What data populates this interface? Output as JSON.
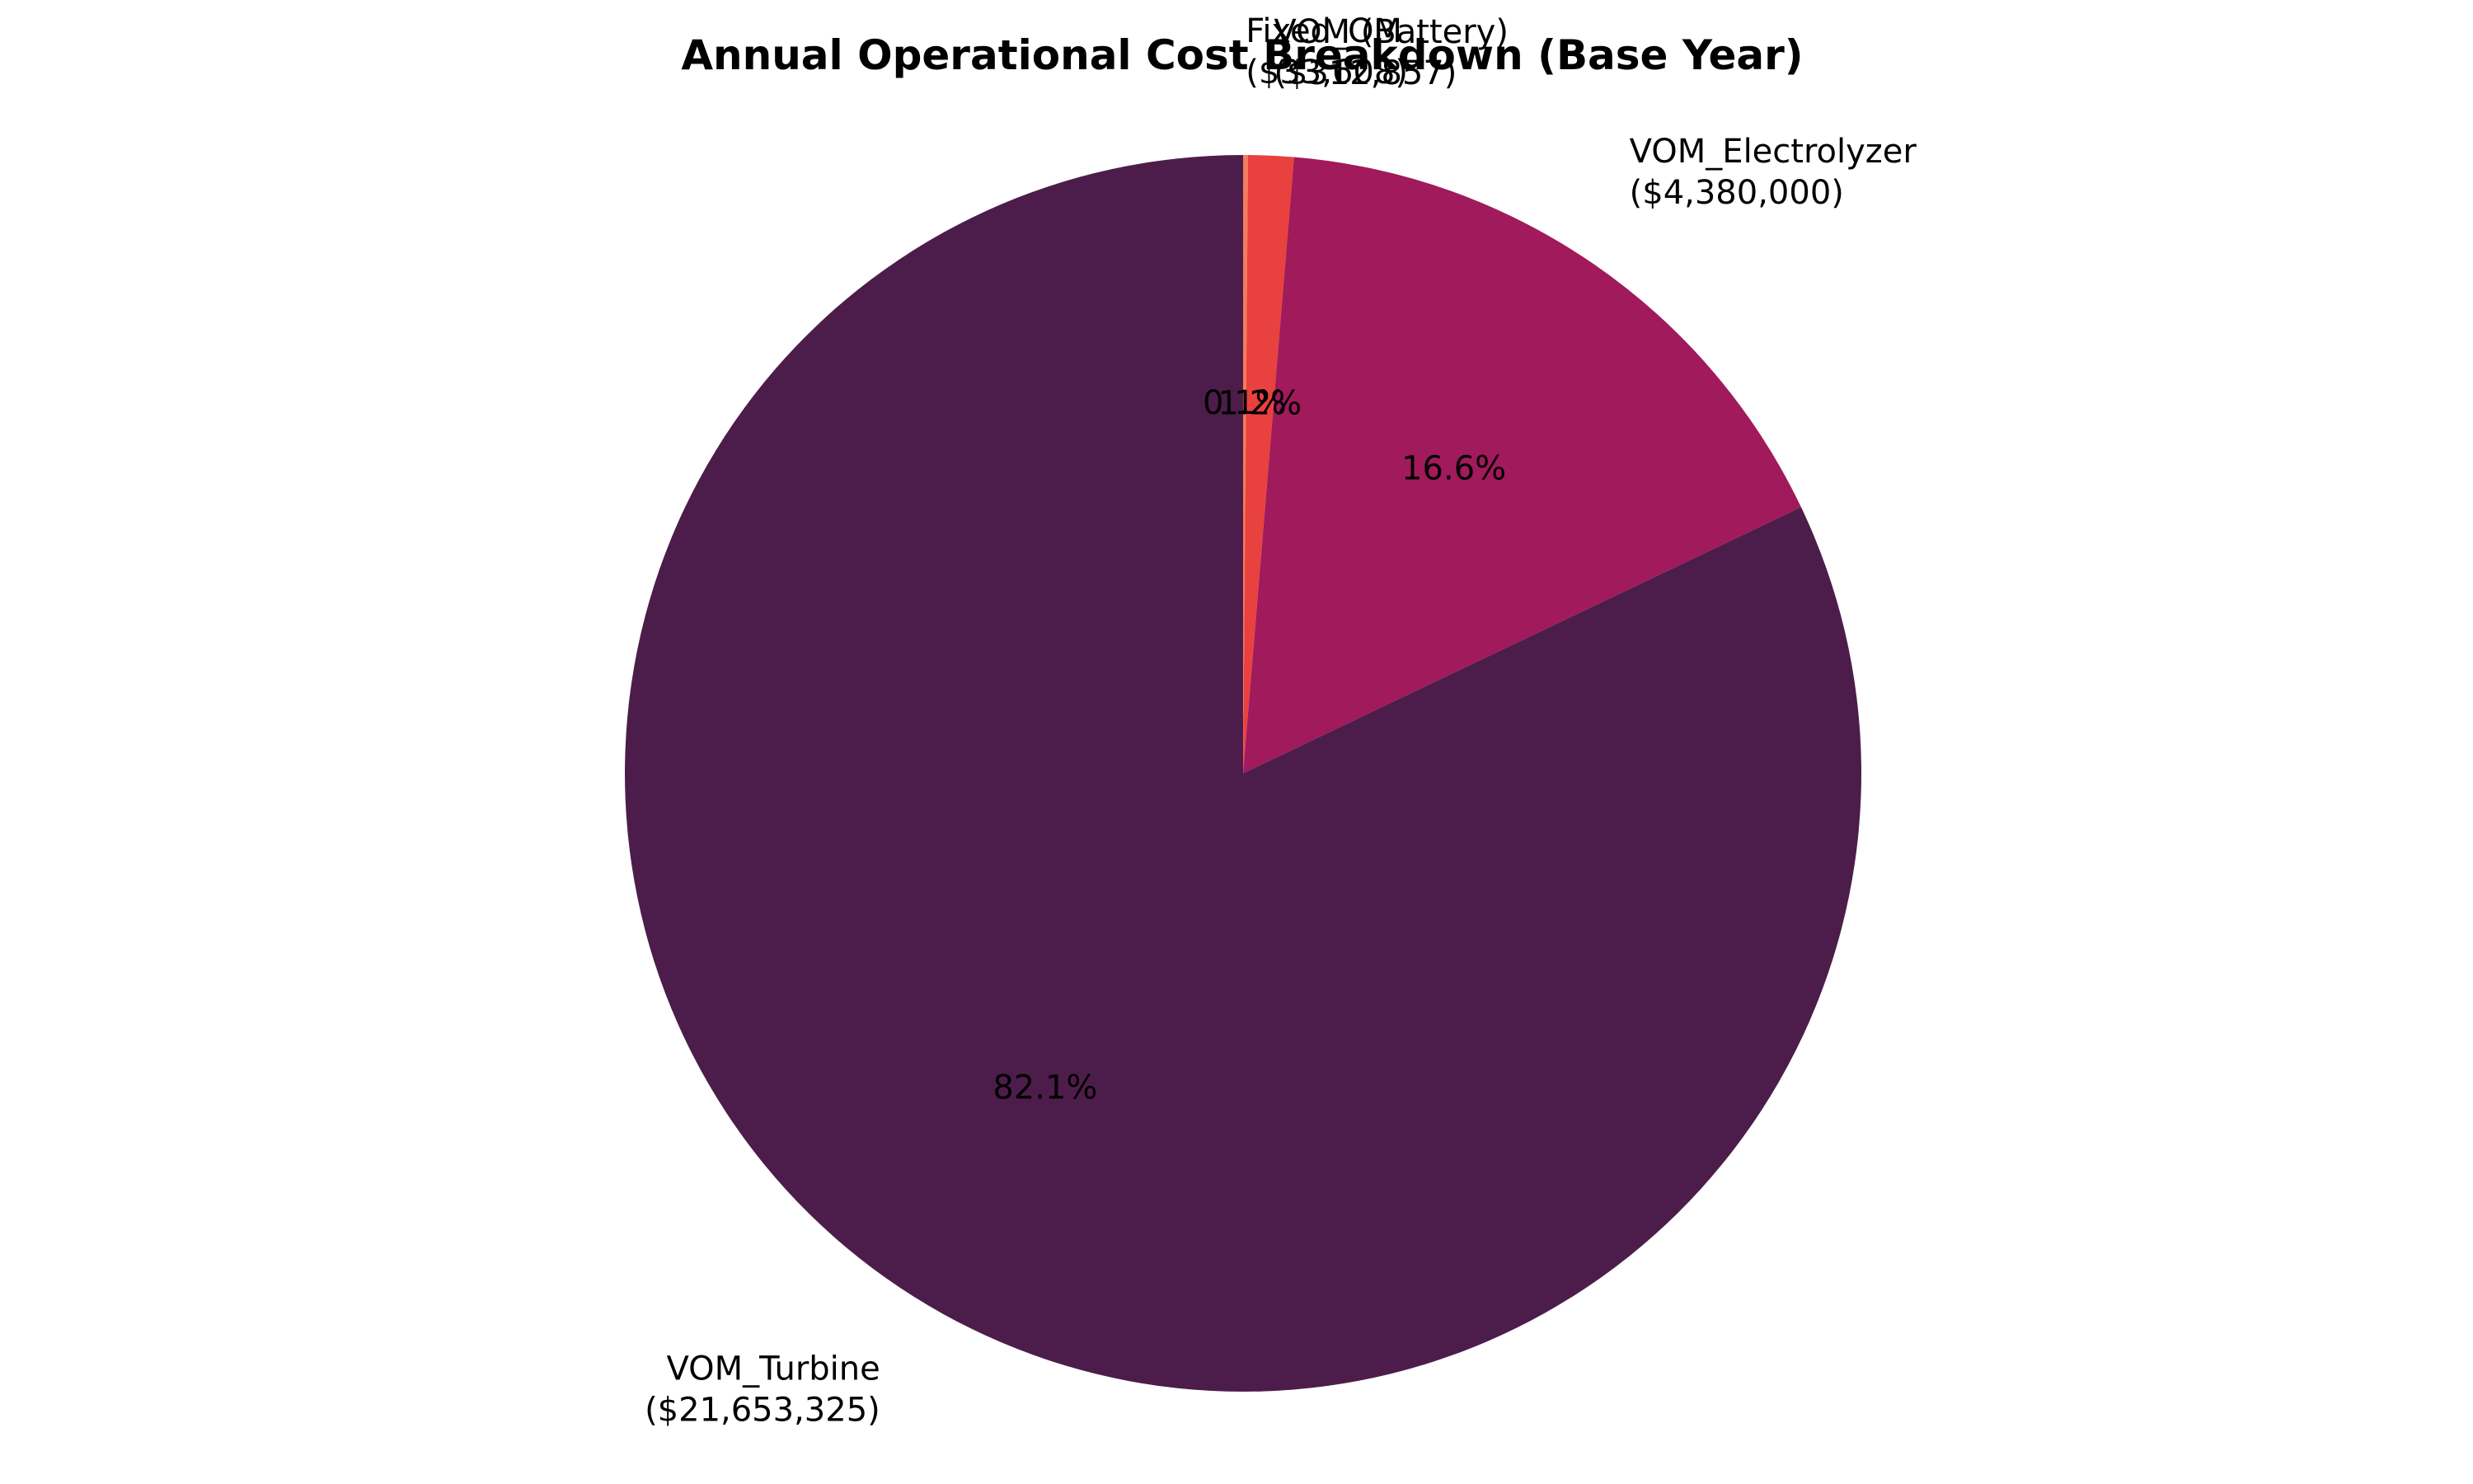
{
  "chart_data": {
    "type": "pie",
    "title": "Annual Operational Cost Breakdown (Base Year)",
    "slices": [
      {
        "name": "Fixed_OM",
        "value": 33608,
        "value_label": "($33,608)",
        "percent_label": "0.1%",
        "color": "#f47b5b"
      },
      {
        "name": "VOM (Battery)",
        "value": 312857,
        "value_label": "($312,857)",
        "percent_label": "1.2%",
        "color": "#e8413f"
      },
      {
        "name": "VOM_Electrolyzer",
        "value": 4380000,
        "value_label": "($4,380,000)",
        "percent_label": "16.6%",
        "color": "#a11a5b"
      },
      {
        "name": "VOM_Turbine",
        "value": 21653325,
        "value_label": "($21,653,325)",
        "percent_label": "82.1%",
        "color": "#4c1d4b"
      }
    ],
    "start_angle": "top (12 o'clock)",
    "direction": "clockwise",
    "legend": "none"
  }
}
